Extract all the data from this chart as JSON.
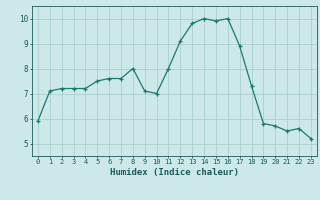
{
  "x": [
    0,
    1,
    2,
    3,
    4,
    5,
    6,
    7,
    8,
    9,
    10,
    11,
    12,
    13,
    14,
    15,
    16,
    17,
    18,
    19,
    20,
    21,
    22,
    23
  ],
  "y": [
    5.9,
    7.1,
    7.2,
    7.2,
    7.2,
    7.5,
    7.6,
    7.6,
    8.0,
    7.1,
    7.0,
    8.0,
    9.1,
    9.8,
    10.0,
    9.9,
    10.0,
    8.9,
    7.3,
    5.8,
    5.7,
    5.5,
    5.6,
    5.2
  ],
  "xlabel": "Humidex (Indice chaleur)",
  "ylim": [
    4.5,
    10.5
  ],
  "xlim": [
    -0.5,
    23.5
  ],
  "yticks": [
    5,
    6,
    7,
    8,
    9,
    10
  ],
  "xticks": [
    0,
    1,
    2,
    3,
    4,
    5,
    6,
    7,
    8,
    9,
    10,
    11,
    12,
    13,
    14,
    15,
    16,
    17,
    18,
    19,
    20,
    21,
    22,
    23
  ],
  "line_color": "#1a7a6e",
  "marker": "+",
  "bg_color": "#cce8e8",
  "grid_color": "#aad0cc",
  "tick_color": "#1a5a5a",
  "label_color": "#1a5a5a"
}
